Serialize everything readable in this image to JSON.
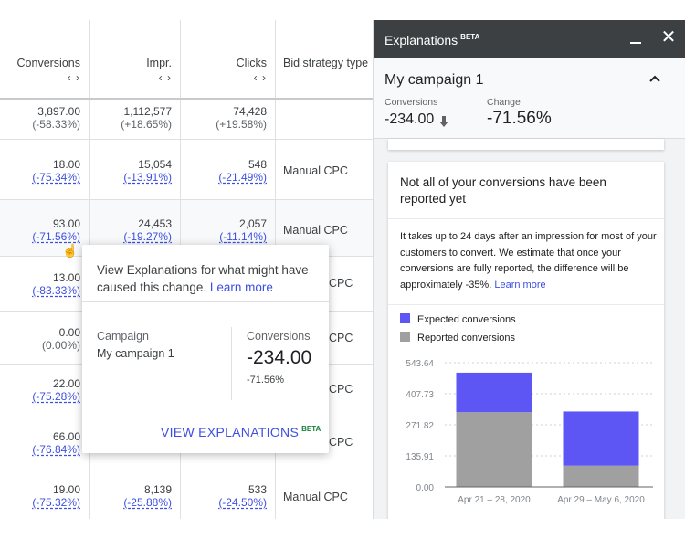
{
  "table": {
    "headers": [
      {
        "label": "Conversions",
        "arrows": "‹ ›"
      },
      {
        "label": "Impr.",
        "arrows": "‹ ›"
      },
      {
        "label": "Clicks",
        "arrows": "‹ ›"
      },
      {
        "label": "Bid strategy type"
      }
    ],
    "rows": [
      {
        "conv": "3,897.00",
        "conv_chg": "(-58.33%)",
        "impr": "1,112,577",
        "impr_chg": "(+18.65%)",
        "clicks": "74,428",
        "clicks_chg": "(+19.58%)",
        "bid": ""
      },
      {
        "conv": "18.00",
        "conv_chg": "(-75.34%)",
        "impr": "15,054",
        "impr_chg": "(-13.91%)",
        "clicks": "548",
        "clicks_chg": "(-21.49%)",
        "bid": "Manual CPC"
      },
      {
        "conv": "93.00",
        "conv_chg": "(-71.56%)",
        "impr": "24,453",
        "impr_chg": "(-19.27%)",
        "clicks": "2,057",
        "clicks_chg": "(-11.14%)",
        "bid": "Manual CPC"
      },
      {
        "conv": "13.00",
        "conv_chg": "(-83.33%)",
        "impr": "",
        "impr_chg": "",
        "clicks": "",
        "clicks_chg": "",
        "bid": "CPC"
      },
      {
        "conv": "0.00",
        "conv_chg": "(0.00%)",
        "impr": "",
        "impr_chg": "",
        "clicks": "",
        "clicks_chg": "",
        "bid": "CPC"
      },
      {
        "conv": "22.00",
        "conv_chg": "(-75.28%)",
        "impr": "",
        "impr_chg": "",
        "clicks": "",
        "clicks_chg": "",
        "bid": "CPC"
      },
      {
        "conv": "66.00",
        "conv_chg": "(-76.84%)",
        "impr": "",
        "impr_chg": "",
        "clicks": "",
        "clicks_chg": "",
        "bid": "CPC"
      },
      {
        "conv": "19.00",
        "conv_chg": "(-75.32%)",
        "impr": "8,139",
        "impr_chg": "(-25.88%)",
        "clicks": "533",
        "clicks_chg": "(-24.50%)",
        "bid": "Manual CPC"
      }
    ]
  },
  "popup": {
    "message": "View Explanations for what might have caused this change.",
    "learn_more": "Learn more",
    "campaign_label": "Campaign",
    "campaign_value": "My campaign 1",
    "conversions_label": "Conversions",
    "conversions_value": "-234.00",
    "conversions_change": "-71.56%",
    "button_label": "VIEW EXPLANATIONS",
    "beta": "BETA"
  },
  "panel": {
    "title": "Explanations",
    "beta": "BETA",
    "campaign": "My campaign 1",
    "conversions_label": "Conversions",
    "conversions_value": "-234.00",
    "change_label": "Change",
    "change_value": "-71.56%",
    "card": {
      "title": "Not all of your conversions have been reported yet",
      "body": "It takes up to 24 days after an impression for most of your customers to convert. We estimate that once your conversions are fully reported, the difference will be approximately -35%.",
      "learn_more": "Learn more",
      "legend": [
        {
          "label": "Expected conversions",
          "color": "#5e55f5"
        },
        {
          "label": "Reported conversions",
          "color": "#a0a0a0"
        }
      ]
    }
  },
  "chart_data": {
    "type": "bar",
    "stacked": true,
    "categories": [
      "Apr 21 – 28, 2020",
      "Apr 29 – May 6, 2020"
    ],
    "series": [
      {
        "name": "Reported conversions",
        "values": [
          327,
          93
        ],
        "color": "#a0a0a0"
      },
      {
        "name": "Expected conversions",
        "values": [
          173,
          237
        ],
        "color": "#5e55f5"
      }
    ],
    "ylim": [
      0,
      543.64
    ],
    "yticks": [
      "0.00",
      "135.91",
      "271.82",
      "407.73",
      "543.64"
    ],
    "xlabel": "",
    "ylabel": ""
  }
}
